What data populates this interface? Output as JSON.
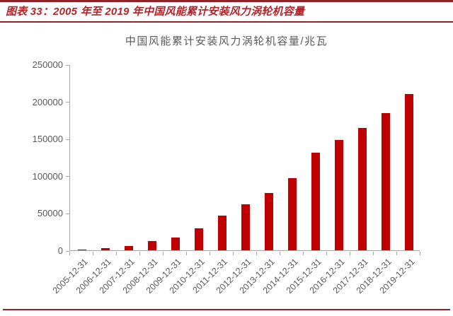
{
  "header": {
    "caption": "图表 33：2005 年至 2019 年中国风能累计安装风力涡轮机容量"
  },
  "chart_data": {
    "type": "bar",
    "title": "中国风能累计安装风力涡轮机容量/兆瓦",
    "categories": [
      "2005-12-31",
      "2006-12-31",
      "2007-12-31",
      "2008-12-31",
      "2009-12-31",
      "2010-12-31",
      "2011-12-31",
      "2012-12-31",
      "2013-12-31",
      "2014-12-31",
      "2015-12-31",
      "2016-12-31",
      "2017-12-31",
      "2018-12-31",
      "2019-12-31"
    ],
    "values": [
      1300,
      2600,
      5900,
      12000,
      17600,
      29600,
      46400,
      61600,
      76900,
      96800,
      130800,
      148500,
      164400,
      184700,
      210500
    ],
    "xlabel": "",
    "ylabel": "",
    "ylim": [
      0,
      250000
    ],
    "y_ticks": [
      0,
      50000,
      100000,
      150000,
      200000,
      250000
    ],
    "grid": false,
    "legend": "none",
    "bar_color": "#c00000",
    "axis_color": "#a8a8a8",
    "text_color": "#595959",
    "accent_red": "#b2252b"
  }
}
